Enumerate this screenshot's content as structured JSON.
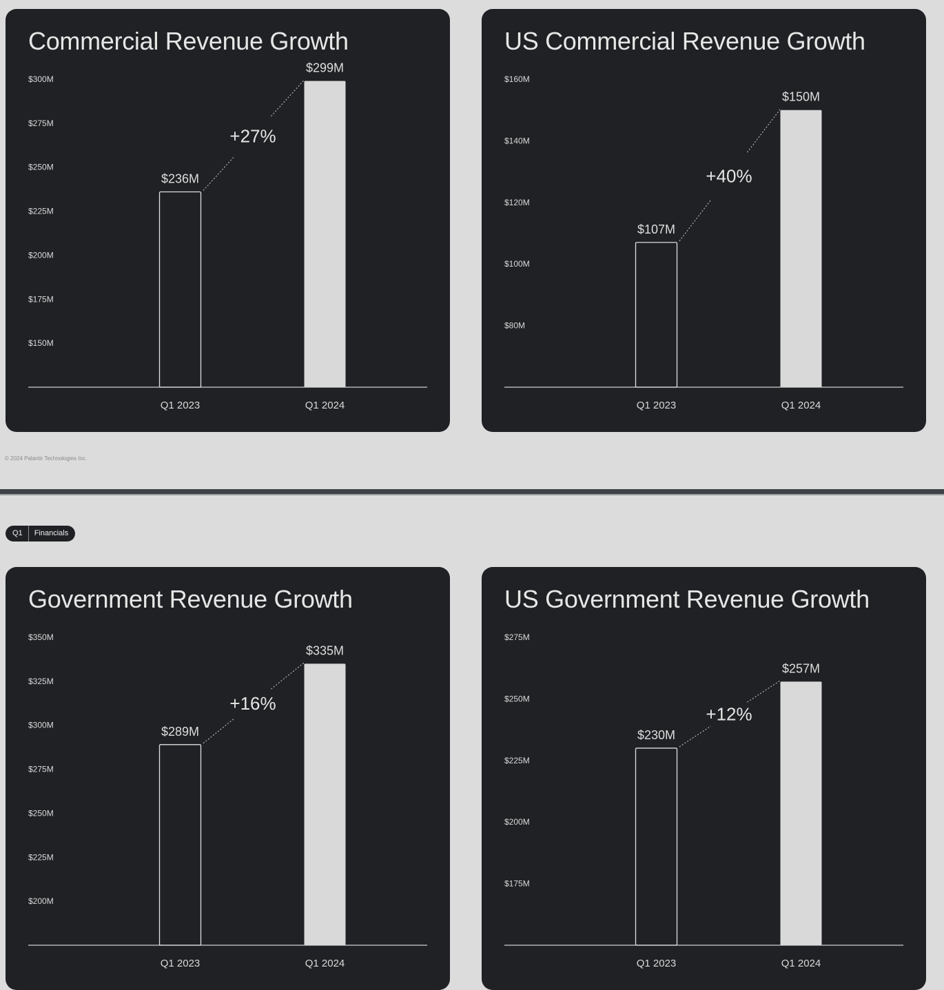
{
  "footer": "© 2024 Palantir Technologies Inc.",
  "pill": {
    "left": "Q1",
    "right": "Financials"
  },
  "colors": {
    "background": "#dcdcdc",
    "card": "#1f2124",
    "bar_fill": "#d9d9d9",
    "text": "#e6e6e6"
  },
  "chart_data": [
    {
      "type": "bar",
      "title": "Commercial Revenue Growth",
      "categories": [
        "Q1 2023",
        "Q1 2024"
      ],
      "values": [
        236,
        299
      ],
      "value_labels": [
        "$236M",
        "$299M"
      ],
      "change_label": "+27%",
      "yticks": [
        150,
        175,
        200,
        225,
        250,
        275,
        300
      ],
      "ytick_labels": [
        "$150M",
        "$175M",
        "$200M",
        "$225M",
        "$250M",
        "$275M",
        "$300M"
      ],
      "ylim": [
        125,
        300
      ],
      "grid": false
    },
    {
      "type": "bar",
      "title": "US Commercial Revenue Growth",
      "categories": [
        "Q1 2023",
        "Q1 2024"
      ],
      "values": [
        107,
        150
      ],
      "value_labels": [
        "$107M",
        "$150M"
      ],
      "change_label": "+40%",
      "yticks": [
        80,
        100,
        120,
        140,
        160
      ],
      "ytick_labels": [
        "$80M",
        "$100M",
        "$120M",
        "$140M",
        "$160M"
      ],
      "ylim": [
        60,
        160
      ],
      "grid": false
    },
    {
      "type": "bar",
      "title": "Government Revenue Growth",
      "categories": [
        "Q1 2023",
        "Q1 2024"
      ],
      "values": [
        289,
        335
      ],
      "value_labels": [
        "$289M",
        "$335M"
      ],
      "change_label": "+16%",
      "yticks": [
        200,
        225,
        250,
        275,
        300,
        325,
        350
      ],
      "ytick_labels": [
        "$200M",
        "$225M",
        "$250M",
        "$275M",
        "$300M",
        "$325M",
        "$350M"
      ],
      "ylim": [
        175,
        350
      ],
      "grid": false
    },
    {
      "type": "bar",
      "title": "US Government Revenue Growth",
      "categories": [
        "Q1 2023",
        "Q1 2024"
      ],
      "values": [
        230,
        257
      ],
      "value_labels": [
        "$230M",
        "$257M"
      ],
      "change_label": "+12%",
      "yticks": [
        175,
        200,
        225,
        250,
        275
      ],
      "ytick_labels": [
        "$175M",
        "$200M",
        "$225M",
        "$250M",
        "$275M"
      ],
      "ylim": [
        150,
        275
      ],
      "grid": false
    }
  ]
}
